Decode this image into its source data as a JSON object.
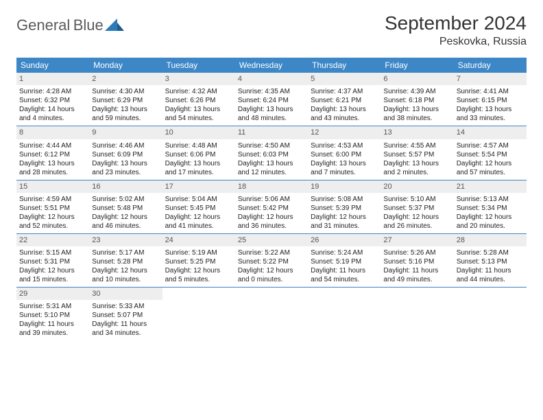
{
  "logo": {
    "text1": "General",
    "text2": "Blue"
  },
  "title": "September 2024",
  "location": "Peskovka, Russia",
  "header_bg": "#3d87c7",
  "daynum_bg": "#eeeeee",
  "week_border": "#3d87c7",
  "weekdays": [
    "Sunday",
    "Monday",
    "Tuesday",
    "Wednesday",
    "Thursday",
    "Friday",
    "Saturday"
  ],
  "cells": [
    {
      "day": "1",
      "sunrise": "Sunrise: 4:28 AM",
      "sunset": "Sunset: 6:32 PM",
      "daylight": "Daylight: 14 hours and 4 minutes."
    },
    {
      "day": "2",
      "sunrise": "Sunrise: 4:30 AM",
      "sunset": "Sunset: 6:29 PM",
      "daylight": "Daylight: 13 hours and 59 minutes."
    },
    {
      "day": "3",
      "sunrise": "Sunrise: 4:32 AM",
      "sunset": "Sunset: 6:26 PM",
      "daylight": "Daylight: 13 hours and 54 minutes."
    },
    {
      "day": "4",
      "sunrise": "Sunrise: 4:35 AM",
      "sunset": "Sunset: 6:24 PM",
      "daylight": "Daylight: 13 hours and 48 minutes."
    },
    {
      "day": "5",
      "sunrise": "Sunrise: 4:37 AM",
      "sunset": "Sunset: 6:21 PM",
      "daylight": "Daylight: 13 hours and 43 minutes."
    },
    {
      "day": "6",
      "sunrise": "Sunrise: 4:39 AM",
      "sunset": "Sunset: 6:18 PM",
      "daylight": "Daylight: 13 hours and 38 minutes."
    },
    {
      "day": "7",
      "sunrise": "Sunrise: 4:41 AM",
      "sunset": "Sunset: 6:15 PM",
      "daylight": "Daylight: 13 hours and 33 minutes."
    },
    {
      "day": "8",
      "sunrise": "Sunrise: 4:44 AM",
      "sunset": "Sunset: 6:12 PM",
      "daylight": "Daylight: 13 hours and 28 minutes."
    },
    {
      "day": "9",
      "sunrise": "Sunrise: 4:46 AM",
      "sunset": "Sunset: 6:09 PM",
      "daylight": "Daylight: 13 hours and 23 minutes."
    },
    {
      "day": "10",
      "sunrise": "Sunrise: 4:48 AM",
      "sunset": "Sunset: 6:06 PM",
      "daylight": "Daylight: 13 hours and 17 minutes."
    },
    {
      "day": "11",
      "sunrise": "Sunrise: 4:50 AM",
      "sunset": "Sunset: 6:03 PM",
      "daylight": "Daylight: 13 hours and 12 minutes."
    },
    {
      "day": "12",
      "sunrise": "Sunrise: 4:53 AM",
      "sunset": "Sunset: 6:00 PM",
      "daylight": "Daylight: 13 hours and 7 minutes."
    },
    {
      "day": "13",
      "sunrise": "Sunrise: 4:55 AM",
      "sunset": "Sunset: 5:57 PM",
      "daylight": "Daylight: 13 hours and 2 minutes."
    },
    {
      "day": "14",
      "sunrise": "Sunrise: 4:57 AM",
      "sunset": "Sunset: 5:54 PM",
      "daylight": "Daylight: 12 hours and 57 minutes."
    },
    {
      "day": "15",
      "sunrise": "Sunrise: 4:59 AM",
      "sunset": "Sunset: 5:51 PM",
      "daylight": "Daylight: 12 hours and 52 minutes."
    },
    {
      "day": "16",
      "sunrise": "Sunrise: 5:02 AM",
      "sunset": "Sunset: 5:48 PM",
      "daylight": "Daylight: 12 hours and 46 minutes."
    },
    {
      "day": "17",
      "sunrise": "Sunrise: 5:04 AM",
      "sunset": "Sunset: 5:45 PM",
      "daylight": "Daylight: 12 hours and 41 minutes."
    },
    {
      "day": "18",
      "sunrise": "Sunrise: 5:06 AM",
      "sunset": "Sunset: 5:42 PM",
      "daylight": "Daylight: 12 hours and 36 minutes."
    },
    {
      "day": "19",
      "sunrise": "Sunrise: 5:08 AM",
      "sunset": "Sunset: 5:39 PM",
      "daylight": "Daylight: 12 hours and 31 minutes."
    },
    {
      "day": "20",
      "sunrise": "Sunrise: 5:10 AM",
      "sunset": "Sunset: 5:37 PM",
      "daylight": "Daylight: 12 hours and 26 minutes."
    },
    {
      "day": "21",
      "sunrise": "Sunrise: 5:13 AM",
      "sunset": "Sunset: 5:34 PM",
      "daylight": "Daylight: 12 hours and 20 minutes."
    },
    {
      "day": "22",
      "sunrise": "Sunrise: 5:15 AM",
      "sunset": "Sunset: 5:31 PM",
      "daylight": "Daylight: 12 hours and 15 minutes."
    },
    {
      "day": "23",
      "sunrise": "Sunrise: 5:17 AM",
      "sunset": "Sunset: 5:28 PM",
      "daylight": "Daylight: 12 hours and 10 minutes."
    },
    {
      "day": "24",
      "sunrise": "Sunrise: 5:19 AM",
      "sunset": "Sunset: 5:25 PM",
      "daylight": "Daylight: 12 hours and 5 minutes."
    },
    {
      "day": "25",
      "sunrise": "Sunrise: 5:22 AM",
      "sunset": "Sunset: 5:22 PM",
      "daylight": "Daylight: 12 hours and 0 minutes."
    },
    {
      "day": "26",
      "sunrise": "Sunrise: 5:24 AM",
      "sunset": "Sunset: 5:19 PM",
      "daylight": "Daylight: 11 hours and 54 minutes."
    },
    {
      "day": "27",
      "sunrise": "Sunrise: 5:26 AM",
      "sunset": "Sunset: 5:16 PM",
      "daylight": "Daylight: 11 hours and 49 minutes."
    },
    {
      "day": "28",
      "sunrise": "Sunrise: 5:28 AM",
      "sunset": "Sunset: 5:13 PM",
      "daylight": "Daylight: 11 hours and 44 minutes."
    },
    {
      "day": "29",
      "sunrise": "Sunrise: 5:31 AM",
      "sunset": "Sunset: 5:10 PM",
      "daylight": "Daylight: 11 hours and 39 minutes."
    },
    {
      "day": "30",
      "sunrise": "Sunrise: 5:33 AM",
      "sunset": "Sunset: 5:07 PM",
      "daylight": "Daylight: 11 hours and 34 minutes."
    }
  ]
}
